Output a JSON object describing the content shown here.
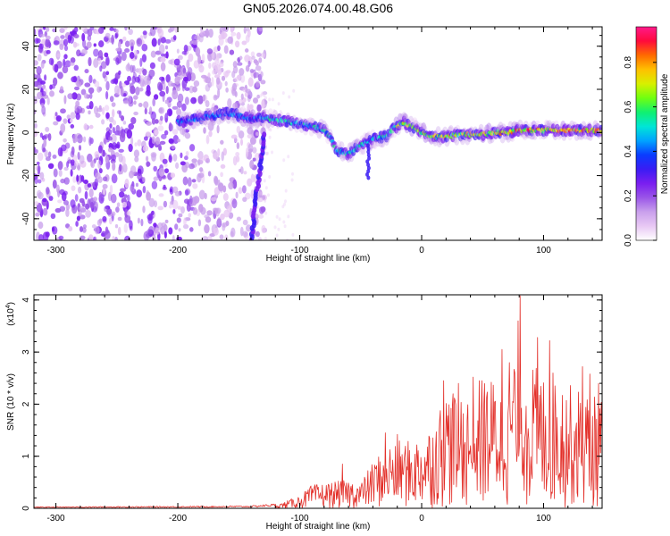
{
  "colors": {
    "snr_line": "#e3302a",
    "axis": "#000000",
    "colormap": [
      "#ffffff",
      "#e8c8f4",
      "#c9a0ec",
      "#9a55e8",
      "#7a1ef0",
      "#3a1cf4",
      "#0a3cff",
      "#00a4ff",
      "#00e6d6",
      "#10f070",
      "#70ff10",
      "#d8f000",
      "#ffc000",
      "#ff6a00",
      "#ff0a3c",
      "#ff1a8a"
    ]
  },
  "chart_data": [
    {
      "type": "heatmap",
      "title": "GN05.2026.074.00.48.G06",
      "xlabel": "Height of straight line (km)",
      "ylabel": "Frequency (Hz)",
      "xlim": [
        -318,
        148
      ],
      "ylim": [
        -50,
        49
      ],
      "xticks": [
        -300,
        -200,
        -100,
        0,
        100
      ],
      "xtick_labels": [
        "-300",
        "-200",
        "-100",
        "0",
        "100"
      ],
      "yticks": [
        -40,
        -20,
        0,
        20,
        40
      ],
      "ytick_labels": [
        "-40",
        "-20",
        "0",
        "20",
        "40"
      ],
      "colorbar": {
        "label": "Normalized spectral amplitude",
        "range": [
          0,
          0.96
        ],
        "ticks": [
          0.0,
          0.2,
          0.4,
          0.6,
          0.8
        ],
        "tick_labels": [
          "0.0",
          "0.2",
          "0.4",
          "0.6",
          "0.8"
        ]
      },
      "ridge": {
        "x": [
          -200,
          -185,
          -170,
          -160,
          -150,
          -140,
          -130,
          -120,
          -110,
          -100,
          -90,
          -80,
          -75,
          -70,
          -60,
          -50,
          -40,
          -30,
          -20,
          -15,
          -10,
          -5,
          0,
          10,
          20,
          30,
          40,
          50,
          60,
          70,
          80,
          90,
          100,
          110,
          120,
          130,
          140,
          148
        ],
        "y": [
          5,
          6,
          8,
          9,
          8,
          6,
          7,
          6,
          5,
          4,
          3,
          1,
          -2,
          -8,
          -10,
          -6,
          -3,
          -2,
          3,
          5,
          3,
          2,
          0,
          -2,
          -2,
          -1,
          -1,
          -1,
          0,
          0,
          1,
          1,
          1,
          1,
          1,
          1,
          1,
          1
        ]
      }
    },
    {
      "type": "line",
      "xlabel": "Height of straight line (km)",
      "ylabel": "SNR (10 * v/v)",
      "multiplier_label": "(x10",
      "multiplier_exponent": "4",
      "xlim": [
        -318,
        148
      ],
      "ylim": [
        0,
        4.1
      ],
      "xticks": [
        -300,
        -200,
        -100,
        0,
        100
      ],
      "xtick_labels": [
        "-300",
        "-200",
        "-100",
        "0",
        "100"
      ],
      "yticks": [
        0,
        1,
        2,
        3,
        4
      ],
      "ytick_labels": [
        "0",
        "1",
        "2",
        "3",
        "4"
      ],
      "envelope": {
        "x": [
          -318,
          -200,
          -140,
          -115,
          -100,
          -90,
          -75,
          -60,
          -50,
          -40,
          -30,
          -20,
          -10,
          0,
          10,
          20,
          30,
          40,
          50,
          60,
          70,
          75,
          80,
          85,
          90,
          100,
          110,
          120,
          130,
          140,
          148
        ],
        "y": [
          0.03,
          0.04,
          0.05,
          0.1,
          0.25,
          0.45,
          0.5,
          0.55,
          0.5,
          0.9,
          1.2,
          1.35,
          1.3,
          1.4,
          1.7,
          2.3,
          2.35,
          2.2,
          2.6,
          2.5,
          3.0,
          3.1,
          3.6,
          3.0,
          2.8,
          2.6,
          2.7,
          2.4,
          2.3,
          2.2,
          2.1
        ]
      },
      "peaks": [
        {
          "x": 80.5,
          "y": 4.08
        },
        {
          "x": 79,
          "y": 3.6
        },
        {
          "x": 95,
          "y": 3.28
        },
        {
          "x": 105,
          "y": 3.22
        },
        {
          "x": 66,
          "y": 3.05
        },
        {
          "x": 132,
          "y": 2.72
        },
        {
          "x": 138,
          "y": 2.58
        },
        {
          "x": 145,
          "y": 2.4
        },
        {
          "x": 42,
          "y": 2.52
        },
        {
          "x": 30,
          "y": 2.4
        },
        {
          "x": 18,
          "y": 2.45
        },
        {
          "x": -65,
          "y": 0.85
        },
        {
          "x": -30,
          "y": 1.45
        },
        {
          "x": -20,
          "y": 1.42
        }
      ]
    }
  ]
}
